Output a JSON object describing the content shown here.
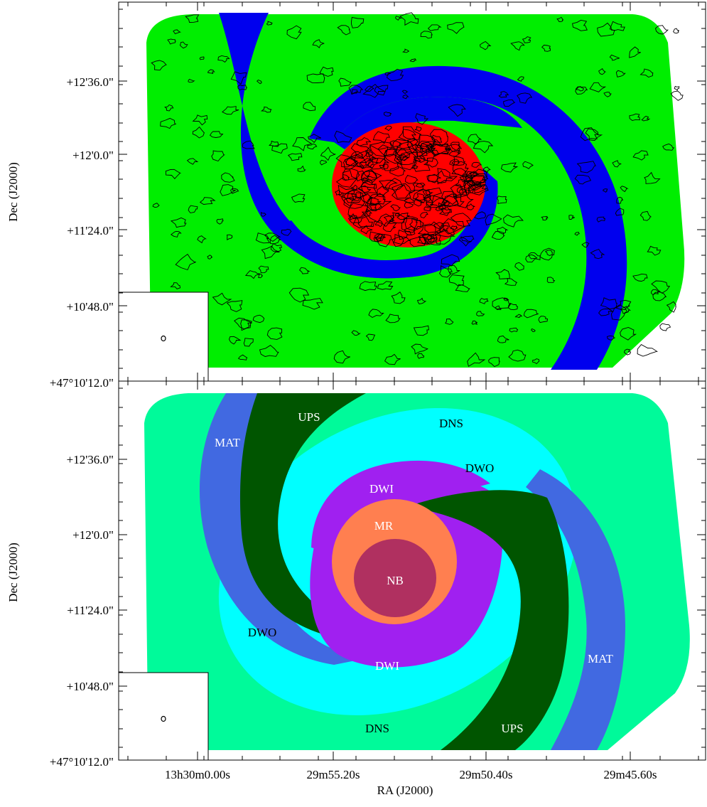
{
  "colors": {
    "background": "#ffffff",
    "axes": "#000000",
    "contour": "#000000",
    "top_disk": "#00ee00",
    "top_arms": "#0000ee",
    "top_center": "#ff0000",
    "bottom_disk": "#00fa9a",
    "bottom_outer_ring": "#00ffff",
    "bottom_mat_arms": "#4169e1",
    "bottom_ups_arms": "#005500",
    "bottom_dwi_ring": "#a020f0",
    "bottom_mr_ring": "#ff7f50",
    "bottom_nb_core": "#b03060"
  },
  "chart_data": [
    {
      "type": "map",
      "panel": "top",
      "xlabel": "",
      "ylabel": "Dec (J2000)",
      "x_ticks": [],
      "y_ticks": [
        "+12'36.0\"",
        "+12'0.0\"",
        "+11'24.0\"",
        "+10'48.0\"",
        "+47°10'12.0\""
      ],
      "regions": [
        {
          "id": "disk",
          "color": "#00ee00"
        },
        {
          "id": "spiral-arms",
          "color": "#0000ee"
        },
        {
          "id": "center",
          "color": "#ff0000"
        }
      ],
      "overlay": "contours",
      "beam_inset": "bottom-left"
    },
    {
      "type": "map",
      "panel": "bottom",
      "xlabel": "RA (J2000)",
      "ylabel": "Dec (J2000)",
      "x_ticks": [
        "13h30m0.00s",
        "29m55.20s",
        "29m50.40s",
        "29m45.60s"
      ],
      "y_ticks": [
        "+12'36.0\"",
        "+12'0.0\"",
        "+11'24.0\"",
        "+10'48.0\"",
        "+47°10'12.0\""
      ],
      "region_labels": [
        {
          "text": "MAT",
          "color": "#ffffff"
        },
        {
          "text": "UPS",
          "color": "#ffffff"
        },
        {
          "text": "DNS",
          "color": "#000000"
        },
        {
          "text": "DWO",
          "color": "#000000"
        },
        {
          "text": "DWI",
          "color": "#ffffff"
        },
        {
          "text": "MR",
          "color": "#ffffff"
        },
        {
          "text": "NB",
          "color": "#ffffff"
        },
        {
          "text": "DWO",
          "color": "#000000"
        },
        {
          "text": "DWI",
          "color": "#ffffff"
        },
        {
          "text": "MAT",
          "color": "#ffffff"
        },
        {
          "text": "DNS",
          "color": "#000000"
        },
        {
          "text": "UPS",
          "color": "#ffffff"
        }
      ],
      "beam_inset": "bottom-left"
    }
  ]
}
